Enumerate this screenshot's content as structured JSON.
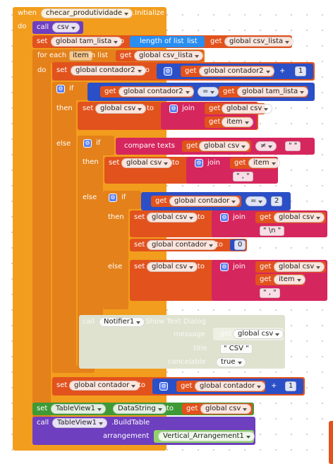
{
  "event": {
    "when": "when",
    "component": "checar_produtividade",
    "event": ".Initialize",
    "do": "do"
  },
  "call_csv": {
    "call": "call",
    "proc": "csv"
  },
  "set_tam": {
    "set": "set",
    "var": "global tam_lista",
    "to": "to",
    "length_label": "length of list",
    "list_label": "list",
    "get": "get",
    "get_var": "global csv_lista"
  },
  "foreach": {
    "for_each": "for each",
    "item": "item",
    "in_list": "in list",
    "get": "get",
    "get_var": "global csv_lista",
    "do": "do"
  },
  "set_cont2": {
    "set": "set",
    "var": "global contador2",
    "to": "to",
    "get": "get",
    "get_var": "global contador2",
    "op": "+",
    "num": "1"
  },
  "if1": {
    "if": "if",
    "get": "get",
    "a": "global contador2",
    "op": "=",
    "b": "global tam_lista",
    "then": "then",
    "else": "else"
  },
  "then1": {
    "set": "set",
    "var": "global csv",
    "to": "to",
    "join": "join",
    "get": "get",
    "a": "global csv",
    "b": "item"
  },
  "if2": {
    "if": "if",
    "compare": "compare texts",
    "get": "get",
    "a": "global csv",
    "op": "≠",
    "b": "\" \"",
    "then": "then",
    "else": "else"
  },
  "then2": {
    "set": "set",
    "var": "global csv",
    "to": "to",
    "join": "join",
    "get": "get",
    "a": "item",
    "b": "\" , \""
  },
  "if3": {
    "if": "if",
    "get": "get",
    "a": "global contador",
    "op": "=",
    "b": "2",
    "then": "then",
    "else": "else"
  },
  "then3": {
    "set": "set",
    "var": "global csv",
    "to": "to",
    "join": "join",
    "get": "get",
    "a": "global csv",
    "b": "\" \\n \""
  },
  "then3b": {
    "set": "set",
    "var": "global contador",
    "to": "to",
    "num": "0"
  },
  "else3": {
    "set": "set",
    "var": "global csv",
    "to": "to",
    "join": "join",
    "get": "get",
    "a": "global csv",
    "b": "item",
    "c": "\" , \""
  },
  "notifier": {
    "call": "call",
    "component": "Notifier1",
    "method": ". Show Text Dialog",
    "message": "message",
    "get": "get",
    "message_var": "global csv",
    "title": "title",
    "title_val": "\" CSV \"",
    "cancelable": "cancelable",
    "cancelable_val": "true"
  },
  "set_cont": {
    "set": "set",
    "var": "global contador",
    "to": "to",
    "get": "get",
    "get_var": "global contador",
    "op": "+",
    "num": "1"
  },
  "set_table": {
    "set": "set",
    "component": "TableView1",
    "prop": "DataString",
    "to": "to",
    "get": "get",
    "get_var": "global csv"
  },
  "build": {
    "call": "call",
    "component": "TableView1",
    "method": ".BuildTable",
    "arrangement": "arrangement",
    "arr_val": "Vertical_Arrangement1"
  },
  "colors": {
    "event": "#f29d1d",
    "control": "#e4811a",
    "variable": "#e2521d",
    "math": "#2b4fc6",
    "list": "#2a8ef0",
    "text": "#d6265e",
    "procedure": "#6e3fbf",
    "component": "#3f9a36",
    "disabled": "#dfe2cf"
  }
}
